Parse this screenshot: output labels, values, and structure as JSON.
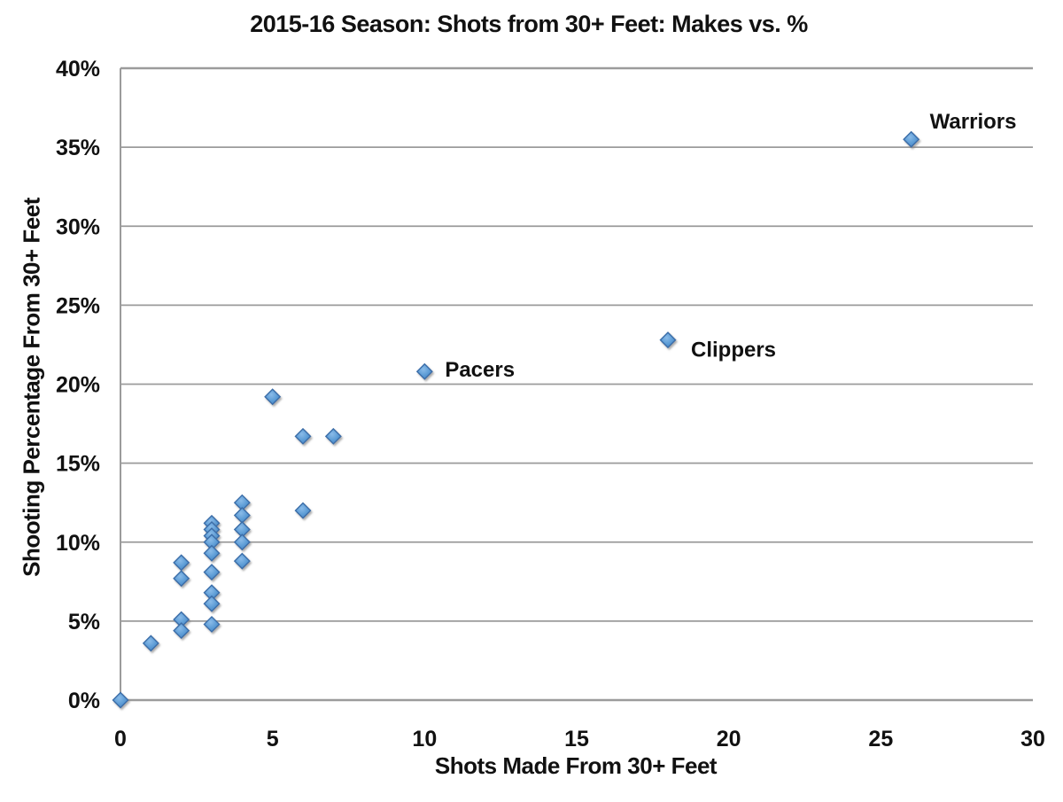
{
  "page": {
    "background": "#FFFFFF"
  },
  "chart_data": {
    "type": "scatter",
    "title": "2015-16 Season: Shots from 30+ Feet: Makes vs. %",
    "xlabel": "Shots Made From 30+ Feet",
    "ylabel": "Shooting Percentage From 30+ Feet",
    "xlim": [
      0,
      30
    ],
    "ylim": [
      0,
      40
    ],
    "grid": "horizontal",
    "legend": "none",
    "marker_shape": "diamond",
    "style": {
      "marker_fill": "#5B9BD5",
      "marker_fill_light": "#8ABBE8",
      "marker_fill_dark": "#4A84C4",
      "marker_stroke": "#3A6DA8",
      "grid_color": "#9B9B9B",
      "axis_color": "#9B9B9B",
      "text_color": "#111111",
      "background": "#FFFFFF"
    },
    "x_ticks": [
      {
        "value": 0,
        "label": "0"
      },
      {
        "value": 5,
        "label": "5"
      },
      {
        "value": 10,
        "label": "10"
      },
      {
        "value": 15,
        "label": "15"
      },
      {
        "value": 20,
        "label": "20"
      },
      {
        "value": 25,
        "label": "25"
      },
      {
        "value": 30,
        "label": "30"
      }
    ],
    "y_ticks": [
      {
        "value": 0,
        "label": "0%"
      },
      {
        "value": 5,
        "label": "5%"
      },
      {
        "value": 10,
        "label": "10%"
      },
      {
        "value": 15,
        "label": "15%"
      },
      {
        "value": 20,
        "label": "20%"
      },
      {
        "value": 25,
        "label": "25%"
      },
      {
        "value": 30,
        "label": "30%"
      },
      {
        "value": 35,
        "label": "35%"
      },
      {
        "value": 40,
        "label": "40%"
      }
    ],
    "points": [
      {
        "x": 0,
        "y": 0.0
      },
      {
        "x": 1,
        "y": 3.6
      },
      {
        "x": 2,
        "y": 4.4
      },
      {
        "x": 2,
        "y": 5.1
      },
      {
        "x": 2,
        "y": 7.7
      },
      {
        "x": 2,
        "y": 8.7
      },
      {
        "x": 3,
        "y": 4.8
      },
      {
        "x": 3,
        "y": 6.1
      },
      {
        "x": 3,
        "y": 6.8
      },
      {
        "x": 3,
        "y": 8.1
      },
      {
        "x": 3,
        "y": 9.3
      },
      {
        "x": 3,
        "y": 10.0
      },
      {
        "x": 3,
        "y": 10.4
      },
      {
        "x": 3,
        "y": 10.8
      },
      {
        "x": 3,
        "y": 11.2
      },
      {
        "x": 4,
        "y": 8.8
      },
      {
        "x": 4,
        "y": 10.0
      },
      {
        "x": 4,
        "y": 10.8
      },
      {
        "x": 4,
        "y": 11.7
      },
      {
        "x": 4,
        "y": 12.5
      },
      {
        "x": 5,
        "y": 19.2
      },
      {
        "x": 6,
        "y": 12.0
      },
      {
        "x": 6,
        "y": 16.7
      },
      {
        "x": 7,
        "y": 16.7
      },
      {
        "x": 10,
        "y": 20.8,
        "label": "Pacers"
      },
      {
        "x": 18,
        "y": 22.8,
        "label": "Clippers"
      },
      {
        "x": 26,
        "y": 35.5,
        "label": "Warriors"
      }
    ]
  }
}
